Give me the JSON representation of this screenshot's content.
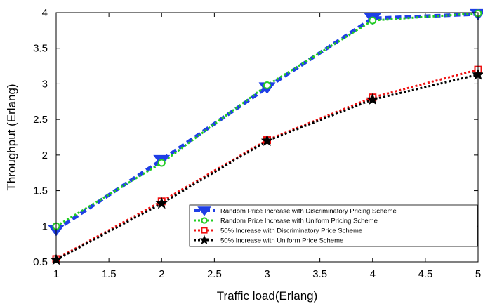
{
  "chart_data": {
    "type": "line",
    "title": "",
    "xlabel": "Traffic load(Erlang)",
    "ylabel": "Throughput (Erlang)",
    "xlim": [
      1,
      5
    ],
    "ylim": [
      0.5,
      4
    ],
    "xticks": [
      1,
      1.5,
      2,
      2.5,
      3,
      3.5,
      4,
      4.5,
      5
    ],
    "yticks": [
      0.5,
      1,
      1.5,
      2,
      2.5,
      3,
      3.5,
      4
    ],
    "xtick_labels": [
      "1",
      "1.5",
      "2",
      "2.5",
      "3",
      "3.5",
      "4",
      "4.5",
      "5"
    ],
    "ytick_labels": [
      "0.5",
      "1",
      "1.5",
      "2",
      "2.5",
      "3",
      "3.5",
      "4"
    ],
    "grid": false,
    "legend_position": "lower-right",
    "series": [
      {
        "name": "Random Price Increase with Discriminatory Pricing Scheme",
        "color": "#1f3fe6",
        "marker": "triangle-down-filled",
        "line_style": "dashed-thick",
        "x": [
          1,
          2,
          3,
          4,
          5
        ],
        "y": [
          0.95,
          1.93,
          2.95,
          3.92,
          3.98
        ]
      },
      {
        "name": "Random Price Increase with Uniform Pricing Scheme",
        "color": "#22cc22",
        "marker": "circle-open",
        "line_style": "dotted",
        "x": [
          1,
          2,
          3,
          4,
          5
        ],
        "y": [
          1.0,
          1.89,
          2.98,
          3.89,
          3.99
        ]
      },
      {
        "name": "50% Increase with Discriminatory Price Scheme",
        "color": "#ee1111",
        "marker": "square-open",
        "line_style": "dotted",
        "x": [
          1,
          2,
          3,
          4,
          5
        ],
        "y": [
          0.54,
          1.35,
          2.21,
          2.81,
          3.2
        ]
      },
      {
        "name": "50% Increase with Uniform Price Scheme",
        "color": "#000000",
        "marker": "star-filled",
        "line_style": "dotted",
        "x": [
          1,
          2,
          3,
          4,
          5
        ],
        "y": [
          0.53,
          1.32,
          2.2,
          2.78,
          3.13
        ]
      }
    ]
  }
}
